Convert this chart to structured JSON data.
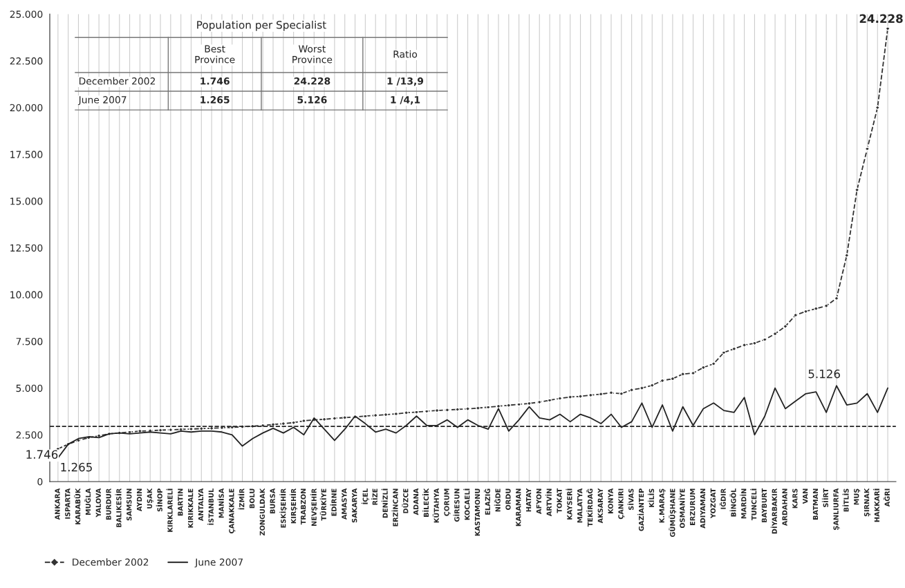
{
  "chart_data": {
    "type": "line",
    "categories": [
      "ANKARA",
      "ISPARTA",
      "KARABÜK",
      "MUĞLA",
      "YALOVA",
      "BURDUR",
      "BALIKESİR",
      "SAMSUN",
      "AYDIN",
      "UŞAK",
      "SİNOP",
      "KIRKLARELİ",
      "BARTIN",
      "KIRIKKALE",
      "ANTALYA",
      "İSTANBUL",
      "MANİSA",
      "ÇANAKKALE",
      "İZMİR",
      "BOLU",
      "ZONGULDAK",
      "BURSA",
      "ESKİŞEHİR",
      "KIRŞEHİR",
      "TRABZON",
      "NEVŞEHİR",
      "TÜRKİYE",
      "EDİRNE",
      "AMASYA",
      "SAKARYA",
      "İÇEL",
      "RİZE",
      "DENİZLİ",
      "ERZİNCAN",
      "DÜZCE",
      "ADANA",
      "BİLECİK",
      "KÜTAHYA",
      "ÇORUM",
      "GİRESUN",
      "KOCAELİ",
      "KASTAMONU",
      "ELAZIĞ",
      "NİĞDE",
      "ORDU",
      "KARAMAN",
      "HATAY",
      "AFYON",
      "ARTVİN",
      "TOKAT",
      "KAYSERİ",
      "MALATYA",
      "TEKİRDAĞ",
      "AKSARAY",
      "KONYA",
      "ÇANKIRI",
      "SİVAS",
      "GAZİANTEP",
      "KİLİS",
      "K.MARAŞ",
      "GÜMÜŞHANE",
      "OSMANİYE",
      "ERZURUM",
      "ADIYAMAN",
      "YOZGAT",
      "IĞDIR",
      "BİNGÖL",
      "MARDİN",
      "TUNCELİ",
      "BAYBURT",
      "DİYARBAKIR",
      "ARDAHAN",
      "KARS",
      "VAN",
      "BATMAN",
      "SİİRT",
      "ŞANLIURFA",
      "BİTLİS",
      "MUŞ",
      "ŞIRNAK",
      "HAKKARİ",
      "AĞRI"
    ],
    "series": [
      {
        "name": "December 2002",
        "color": "#333333",
        "marker": "diamond",
        "line_style": "dashed",
        "values": [
          1746,
          2000,
          2200,
          2350,
          2450,
          2550,
          2600,
          2650,
          2700,
          2720,
          2750,
          2770,
          2790,
          2810,
          2830,
          2850,
          2880,
          2900,
          2930,
          2960,
          3000,
          3050,
          3100,
          3150,
          3250,
          3300,
          3330,
          3380,
          3420,
          3460,
          3500,
          3540,
          3580,
          3620,
          3680,
          3720,
          3760,
          3800,
          3830,
          3860,
          3890,
          3930,
          3980,
          4030,
          4080,
          4130,
          4180,
          4250,
          4350,
          4450,
          4520,
          4560,
          4620,
          4680,
          4750,
          4700,
          4900,
          5000,
          5150,
          5400,
          5500,
          5750,
          5800,
          6100,
          6300,
          6900,
          7100,
          7300,
          7400,
          7600,
          7900,
          8300,
          8900,
          9100,
          9250,
          9400,
          9800,
          12100,
          15600,
          17800,
          20000,
          24228
        ]
      },
      {
        "name": "June 2007",
        "color": "#222222",
        "marker": "none",
        "line_style": "solid",
        "values": [
          1265,
          2000,
          2300,
          2400,
          2350,
          2550,
          2600,
          2550,
          2600,
          2650,
          2600,
          2550,
          2700,
          2650,
          2700,
          2700,
          2650,
          2500,
          1900,
          2300,
          2600,
          2850,
          2600,
          2900,
          2500,
          3400,
          2800,
          2200,
          2800,
          3500,
          3100,
          2650,
          2800,
          2600,
          3000,
          3500,
          3000,
          3000,
          3300,
          2900,
          3300,
          3000,
          2800,
          3900,
          2700,
          3300,
          4000,
          3400,
          3300,
          3600,
          3200,
          3600,
          3400,
          3100,
          3600,
          2900,
          3200,
          4200,
          2900,
          4100,
          2700,
          4000,
          3000,
          3900,
          4200,
          3800,
          3700,
          4500,
          2500,
          3500,
          5000,
          3900,
          4300,
          4700,
          4800,
          3700,
          5126,
          4100,
          4200,
          4700,
          3700,
          5000
        ]
      }
    ],
    "ylim": [
      0,
      25000
    ],
    "yticks": [
      0,
      {
        "value": 2500,
        "label": "2.500"
      },
      {
        "value": 5000,
        "label": "5.000"
      },
      {
        "value": 7500,
        "label": "7.500"
      },
      {
        "value": 10000,
        "label": "10.000"
      },
      {
        "value": 12500,
        "label": "12.500"
      },
      {
        "value": 15000,
        "label": "15.000"
      },
      {
        "value": 17500,
        "label": "17.500"
      },
      {
        "value": 20000,
        "label": "20.000"
      },
      {
        "value": 22500,
        "label": "22.500"
      },
      {
        "value": 25000,
        "label": "25.000"
      }
    ],
    "ref_lines": [
      {
        "axis": "y",
        "value": 2950,
        "color": "#222222",
        "line_style": "dashed"
      }
    ],
    "grid": "x",
    "legend": "bottom left",
    "annotations": [
      {
        "text": "1.746",
        "x": "ANKARA",
        "y": 1746
      },
      {
        "text": "1.265",
        "x": "ANKARA",
        "y": 1265
      },
      {
        "text": "24.228",
        "x": "AĞRI",
        "y": 24228
      },
      {
        "text": "5.126",
        "x": "ŞANLIURFA",
        "y": 5126
      },
      "Population per Specialist",
      "Best\nProvince",
      "Worst\nProvince",
      "Ratio",
      "December 2002",
      "1.746",
      "24.228",
      "1 /13,9",
      "June 2007",
      "1.265",
      "5.126",
      "1 /4,1"
    ]
  }
}
